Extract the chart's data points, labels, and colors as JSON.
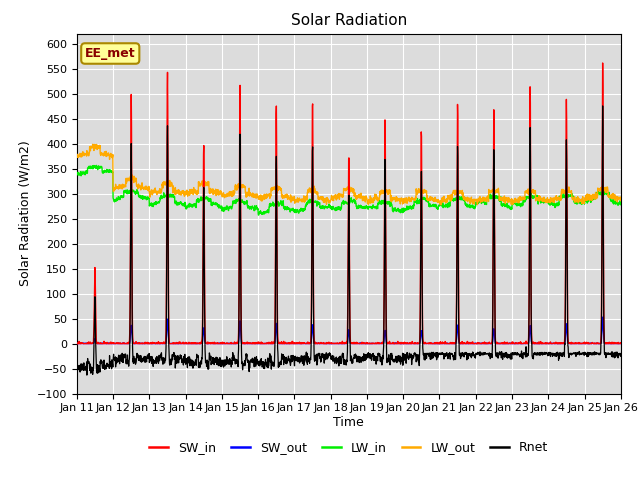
{
  "title": "Solar Radiation",
  "ylabel": "Solar Radiation (W/m2)",
  "xlabel": "Time",
  "annotation": "EE_met",
  "ylim": [
    -100,
    620
  ],
  "yticks": [
    -100,
    -50,
    0,
    50,
    100,
    150,
    200,
    250,
    300,
    350,
    400,
    450,
    500,
    550,
    600
  ],
  "x_tick_labels": [
    "Jan 11",
    "Jan 12",
    "Jan 13",
    "Jan 14",
    "Jan 15",
    "Jan 16",
    "Jan 17",
    "Jan 18",
    "Jan 19",
    "Jan 20",
    "Jan 21",
    "Jan 22",
    "Jan 23",
    "Jan 24",
    "Jan 25",
    "Jan 26"
  ],
  "n_days": 15,
  "bg_color": "#dcdcdc",
  "legend_entries": [
    "SW_in",
    "SW_out",
    "LW_in",
    "LW_out",
    "Rnet"
  ],
  "legend_colors": [
    "#ff0000",
    "#0000ff",
    "#00ee00",
    "#ffaa00",
    "#000000"
  ]
}
